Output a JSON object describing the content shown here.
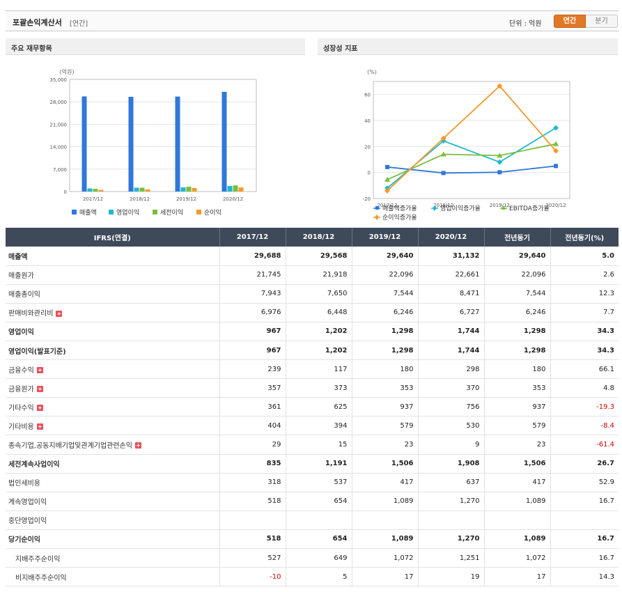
{
  "header": {
    "title": "포괄손익계산서",
    "subtitle": "[연간]",
    "unit": "단위 : 억원",
    "toggle_annual": "연간",
    "toggle_quarter": "분기"
  },
  "panels": {
    "left_title": "주요 재무항목",
    "right_title": "성장성 지표"
  },
  "chart_data": [
    {
      "type": "bar",
      "title": "주요 재무항목",
      "ylabel": "(억원)",
      "categories": [
        "2017/12",
        "2018/12",
        "2019/12",
        "2020/12"
      ],
      "ylim": [
        0,
        35000
      ],
      "yticks": [
        "0",
        "7,000",
        "14,000",
        "21,000",
        "28,000",
        "35,000"
      ],
      "legend_position": "bottom",
      "grid": true,
      "series": [
        {
          "name": "매출액",
          "color": "#2f78d8",
          "values": [
            29688,
            29568,
            29640,
            31132
          ]
        },
        {
          "name": "영업이익",
          "color": "#1fb8d0",
          "values": [
            967,
            1202,
            1298,
            1744
          ]
        },
        {
          "name": "세전이익",
          "color": "#7cbd3b",
          "values": [
            835,
            1191,
            1506,
            1908
          ]
        },
        {
          "name": "순이익",
          "color": "#f39a2a",
          "values": [
            518,
            654,
            1089,
            1270
          ]
        }
      ]
    },
    {
      "type": "line",
      "title": "성장성 지표",
      "ylabel": "(%)",
      "categories": [
        "2017/12",
        "2018/12",
        "2019/12",
        "2020/12"
      ],
      "ylim": [
        -20,
        70
      ],
      "yticks": [
        "-20",
        "0",
        "20",
        "40",
        "60"
      ],
      "legend_position": "bottom",
      "grid": true,
      "series": [
        {
          "name": "매출액증가율",
          "color": "#2f78d8",
          "marker": "square",
          "values": [
            4.2,
            -0.4,
            0.2,
            5.0
          ]
        },
        {
          "name": "영업이익증가율",
          "color": "#1fb8d0",
          "marker": "diamond",
          "values": [
            -12.0,
            24.3,
            8.0,
            34.3
          ]
        },
        {
          "name": "EBITDA증가율",
          "color": "#7cbd3b",
          "marker": "triangle",
          "values": [
            -5.5,
            14.0,
            13.0,
            22.0
          ]
        },
        {
          "name": "순이익증가율",
          "color": "#f39a2a",
          "marker": "diamond",
          "values": [
            -14.0,
            26.3,
            66.5,
            16.7
          ]
        }
      ]
    }
  ],
  "table": {
    "headers": [
      "IFRS(연결)",
      "2017/12",
      "2018/12",
      "2019/12",
      "2020/12",
      "전년동기",
      "전년동기(%)"
    ],
    "rows": [
      {
        "label": "매출액",
        "values": [
          "29,688",
          "29,568",
          "29,640",
          "31,132",
          "29,640",
          "5.0"
        ],
        "bold": true
      },
      {
        "label": "매출원가",
        "values": [
          "21,745",
          "21,918",
          "22,096",
          "22,661",
          "22,096",
          "2.6"
        ]
      },
      {
        "label": "매출총이익",
        "values": [
          "7,943",
          "7,650",
          "7,544",
          "8,471",
          "7,544",
          "12.3"
        ]
      },
      {
        "label": "판매비와관리비",
        "values": [
          "6,976",
          "6,448",
          "6,246",
          "6,727",
          "6,246",
          "7.7"
        ],
        "plus": true
      },
      {
        "label": "영업이익",
        "values": [
          "967",
          "1,202",
          "1,298",
          "1,744",
          "1,298",
          "34.3"
        ],
        "bold": true,
        "sep": true
      },
      {
        "label": "영업이익(발표기준)",
        "values": [
          "967",
          "1,202",
          "1,298",
          "1,744",
          "1,298",
          "34.3"
        ],
        "bold": true
      },
      {
        "label": "금융수익",
        "values": [
          "239",
          "117",
          "180",
          "298",
          "180",
          "66.1"
        ],
        "plus": true
      },
      {
        "label": "금융원가",
        "values": [
          "357",
          "373",
          "353",
          "370",
          "353",
          "4.8"
        ],
        "plus": true
      },
      {
        "label": "기타수익",
        "values": [
          "361",
          "625",
          "937",
          "756",
          "937",
          "-19.3"
        ],
        "plus": true
      },
      {
        "label": "기타비용",
        "values": [
          "404",
          "394",
          "579",
          "530",
          "579",
          "-8.4"
        ],
        "plus": true
      },
      {
        "label": "종속기업,공동지배기업및관계기업관련손익",
        "values": [
          "29",
          "15",
          "23",
          "9",
          "23",
          "-61.4"
        ],
        "plus": true
      },
      {
        "label": "세전계속사업이익",
        "values": [
          "835",
          "1,191",
          "1,506",
          "1,908",
          "1,506",
          "26.7"
        ],
        "bold": true,
        "sep": true
      },
      {
        "label": "법인세비용",
        "values": [
          "318",
          "537",
          "417",
          "637",
          "417",
          "52.9"
        ]
      },
      {
        "label": "계속영업이익",
        "values": [
          "518",
          "654",
          "1,089",
          "1,270",
          "1,089",
          "16.7"
        ]
      },
      {
        "label": "중단영업이익",
        "values": [
          "",
          "",
          "",
          "",
          "",
          ""
        ]
      },
      {
        "label": "당기순이익",
        "values": [
          "518",
          "654",
          "1,089",
          "1,270",
          "1,089",
          "16.7"
        ],
        "bold": true,
        "sep": true
      },
      {
        "label": "지배주주순이익",
        "values": [
          "527",
          "649",
          "1,072",
          "1,251",
          "1,072",
          "16.7"
        ],
        "indent": true
      },
      {
        "label": "비지배주주순이익",
        "values": [
          "-10",
          "5",
          "17",
          "19",
          "17",
          "14.3"
        ],
        "indent": true
      }
    ]
  }
}
